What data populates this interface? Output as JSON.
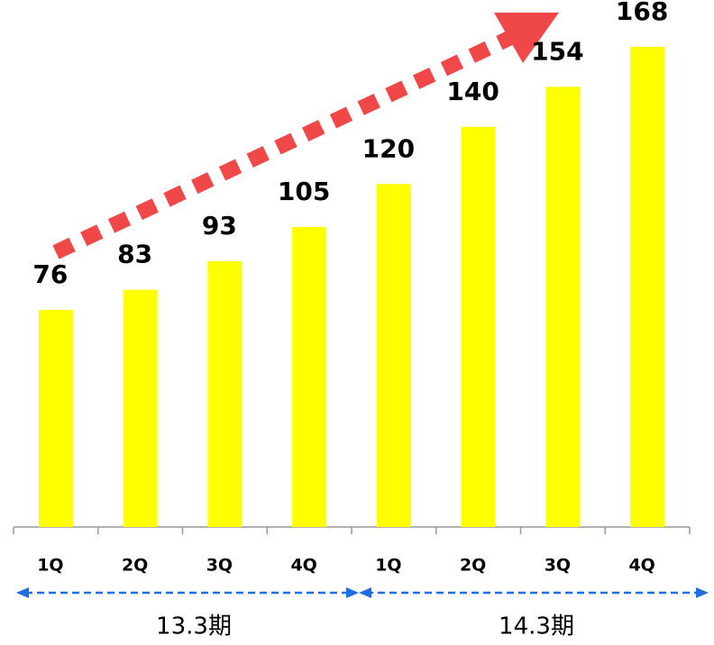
{
  "chart_data": {
    "type": "bar",
    "categories": [
      "1Q",
      "2Q",
      "3Q",
      "4Q",
      "1Q",
      "2Q",
      "3Q",
      "4Q"
    ],
    "values": [
      76,
      83,
      93,
      105,
      120,
      140,
      154,
      168
    ],
    "color": "#ffff00",
    "groups": [
      "13.3期",
      "14.3期"
    ]
  }
}
